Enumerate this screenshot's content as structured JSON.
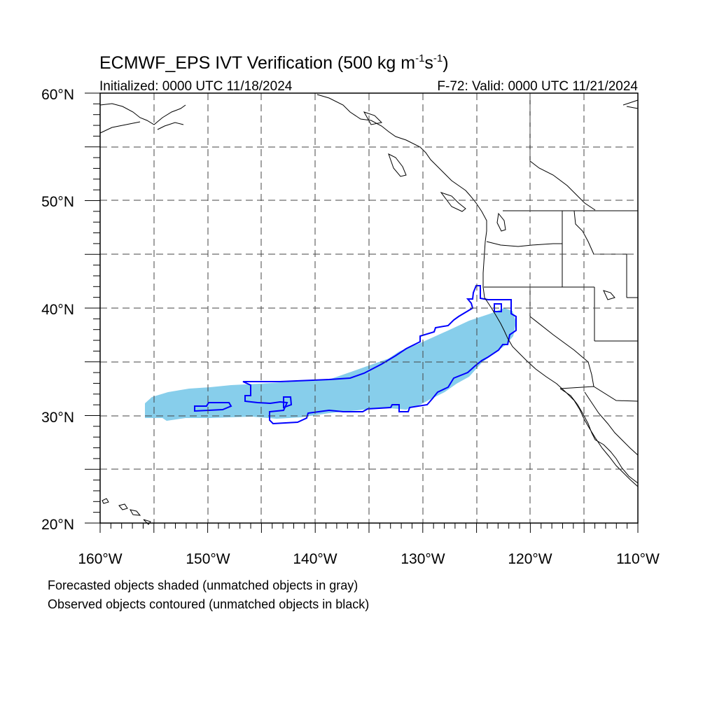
{
  "title": {
    "main": "ECMWF_EPS IVT Verification (500 kg m",
    "exp1": "-1",
    "mid": "s",
    "exp2": "-1",
    "tail": ")"
  },
  "subtitle": {
    "left": "Initialized: 0000 UTC 11/18/2024",
    "right": "F-72: Valid: 0000 UTC 11/21/2024"
  },
  "lat_labels": [
    "60°N",
    "50°N",
    "40°N",
    "30°N",
    "20°N"
  ],
  "lon_labels": [
    "160°W",
    "150°W",
    "140°W",
    "130°W",
    "120°W",
    "110°W"
  ],
  "footnotes": [
    "Forecasted objects shaded (unmatched objects in gray)",
    "Observed objects contoured (unmatched objects in black)"
  ],
  "colors": {
    "forecast_fill": "#87ceeb",
    "observed_contour": "#0000ff",
    "grid": "#444444",
    "coast": "#000000"
  },
  "map": {
    "projection": "cylindrical equidistant",
    "lon_range": [
      -160,
      -110
    ],
    "lat_range": [
      20,
      60
    ],
    "grid_spacing_deg": 5
  }
}
